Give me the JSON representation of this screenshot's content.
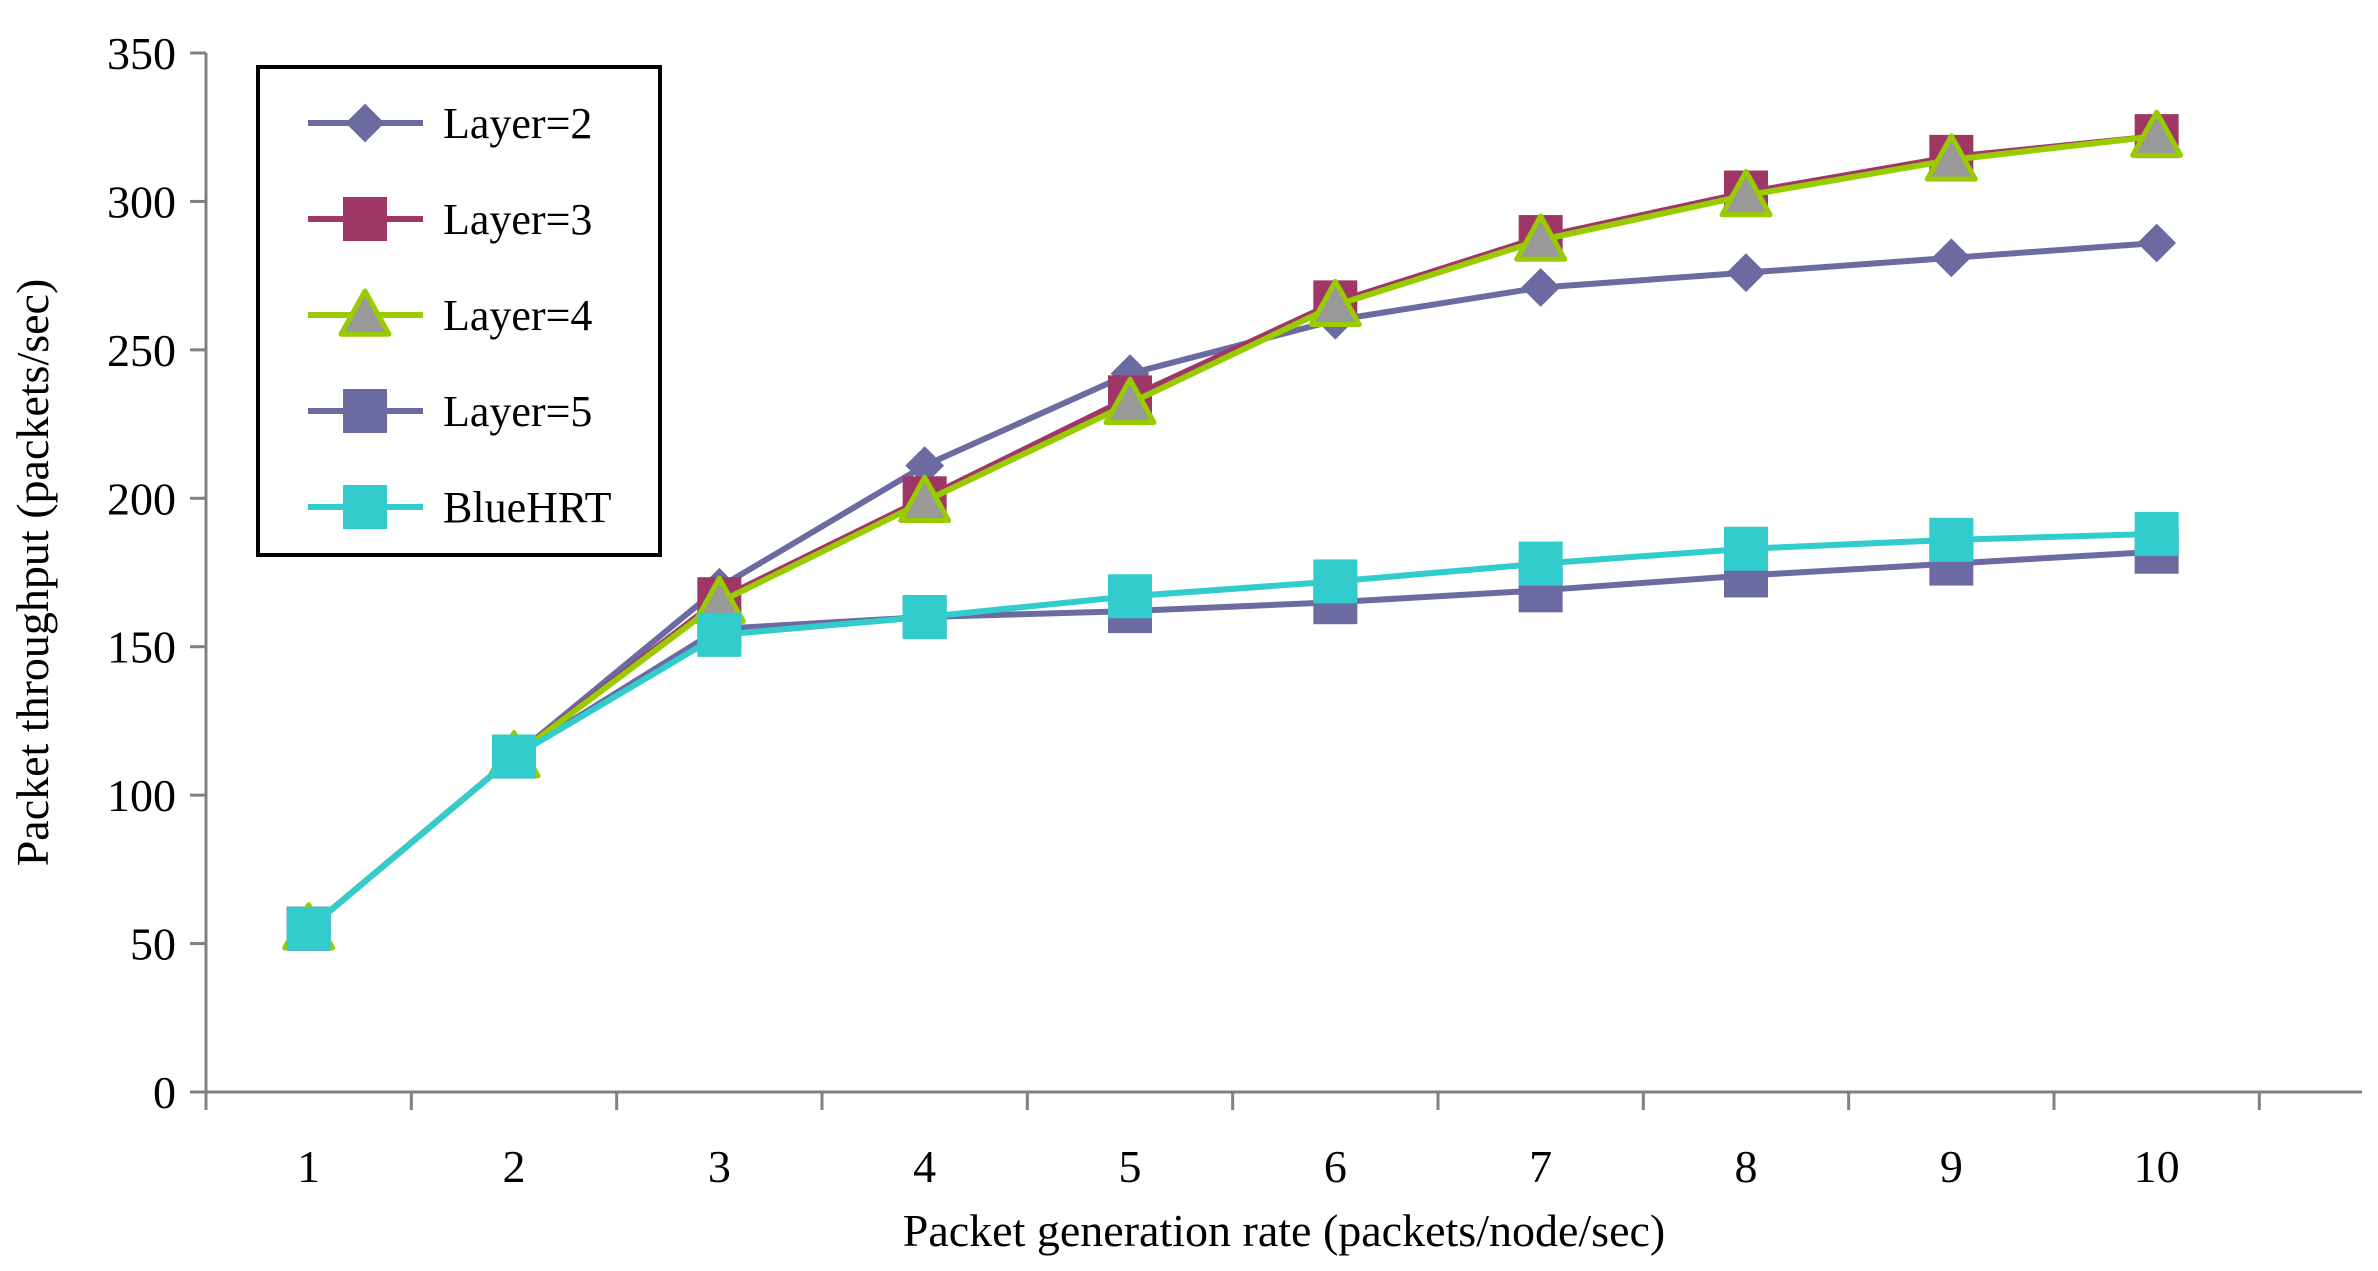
{
  "chart_data": {
    "type": "line",
    "title": "",
    "xlabel": "Packet  generation  rate (packets/node/sec)",
    "ylabel": "Packet  throughput  (packets/sec)",
    "categories": [
      "1",
      "2",
      "3",
      "4",
      "5",
      "6",
      "7",
      "8",
      "9",
      "10"
    ],
    "x": [
      1,
      2,
      3,
      4,
      5,
      6,
      7,
      8,
      9,
      10
    ],
    "ylim": [
      0,
      350
    ],
    "yticks": [
      0,
      50,
      100,
      150,
      200,
      250,
      300,
      350
    ],
    "ytick_labels": [
      "0",
      "50",
      "100",
      "150",
      "200",
      "250",
      "300",
      "350"
    ],
    "grid": false,
    "legend_position": "top-left",
    "series": [
      {
        "name": "Layer=2",
        "values": [
          55,
          113,
          170,
          211,
          242,
          260,
          271,
          276,
          281,
          286
        ],
        "color": "#6B6BA1",
        "marker": "diamond"
      },
      {
        "name": "Layer=3",
        "values": [
          55,
          113,
          166,
          200,
          234,
          266,
          288,
          303,
          315,
          322
        ],
        "color": "#9E3766",
        "marker": "square"
      },
      {
        "name": "Layer=4",
        "values": [
          55,
          113,
          165,
          199,
          232,
          265,
          287,
          302,
          314,
          322
        ],
        "color": "#99CC00",
        "marker": "triangle"
      },
      {
        "name": "Layer=5",
        "values": [
          55,
          113,
          156,
          160,
          162,
          165,
          169,
          174,
          178,
          182
        ],
        "color": "#6B6BA1",
        "marker": "square"
      },
      {
        "name": "BlueHRT",
        "values": [
          55,
          113,
          154,
          160,
          167,
          172,
          178,
          183,
          186,
          188
        ],
        "color": "#33CCCC",
        "marker": "square"
      }
    ]
  }
}
